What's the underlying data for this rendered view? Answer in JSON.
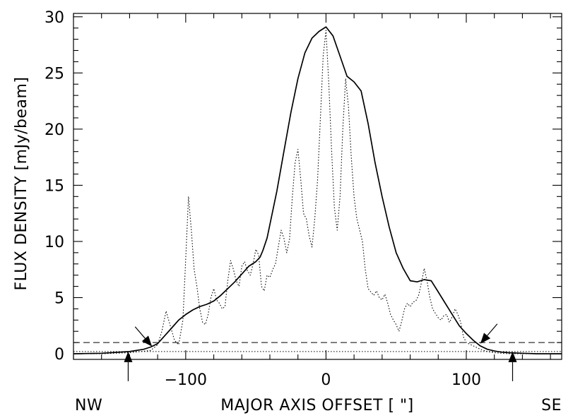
{
  "chart_data": {
    "type": "line",
    "title": "",
    "xlabel": "MAJOR AXIS OFFSET [ \"]",
    "ylabel": "FLUX DENSITY [mJy/beam]",
    "xlim": [
      -180,
      168
    ],
    "ylim": [
      -0.5,
      30.3
    ],
    "x_ticks": [
      -100,
      0,
      100
    ],
    "y_ticks": [
      0,
      5,
      10,
      15,
      20,
      25,
      30
    ],
    "x_tick_labels": [
      "−100",
      "0",
      "100"
    ],
    "y_tick_labels": [
      "0",
      "5",
      "10",
      "15",
      "20",
      "25",
      "30"
    ],
    "x_minor_step": 20,
    "y_minor_step": 1,
    "grid": false,
    "legend": "none",
    "side_labels": {
      "left": "NW",
      "right": "SE"
    },
    "hlines": [
      {
        "y": 1.0,
        "style": "dashed"
      },
      {
        "y": 0.2,
        "style": "dotted"
      }
    ],
    "series": [
      {
        "style": "solid",
        "x": [
          -180,
          -160,
          -140,
          -130,
          -125,
          -120,
          -115,
          -110,
          -105,
          -100,
          -95,
          -90,
          -85,
          -80,
          -75,
          -70,
          -65,
          -60,
          -55,
          -50,
          -47,
          -45,
          -42,
          -40,
          -35,
          -30,
          -25,
          -20,
          -15,
          -10,
          -5,
          0,
          5,
          10,
          15,
          20,
          25,
          30,
          35,
          40,
          45,
          50,
          55,
          60,
          65,
          70,
          75,
          80,
          85,
          90,
          95,
          100,
          105,
          110,
          115,
          120,
          125,
          130,
          140,
          150,
          168
        ],
        "y": [
          0.0,
          0.05,
          0.2,
          0.4,
          0.6,
          0.9,
          1.6,
          2.3,
          3.0,
          3.5,
          3.9,
          4.2,
          4.4,
          4.7,
          5.2,
          5.8,
          6.4,
          7.1,
          7.8,
          8.2,
          8.6,
          9.2,
          10.3,
          11.5,
          14.5,
          18.0,
          21.5,
          24.5,
          26.8,
          28.1,
          28.7,
          29.1,
          28.3,
          26.5,
          24.7,
          24.2,
          23.4,
          20.5,
          17.0,
          14.0,
          11.3,
          9.0,
          7.6,
          6.5,
          6.4,
          6.6,
          6.5,
          5.5,
          4.5,
          3.5,
          2.5,
          1.8,
          1.2,
          0.7,
          0.4,
          0.25,
          0.15,
          0.1,
          0.05,
          0.0,
          0.0
        ]
      },
      {
        "style": "dotted",
        "x": [
          -180,
          -160,
          -140,
          -125,
          -120,
          -117,
          -114,
          -111,
          -108,
          -105,
          -102,
          -100,
          -98,
          -96,
          -94,
          -92,
          -90,
          -88,
          -86,
          -84,
          -82,
          -80,
          -78,
          -76,
          -74,
          -72,
          -70,
          -68,
          -66,
          -64,
          -62,
          -60,
          -58,
          -56,
          -54,
          -52,
          -50,
          -48,
          -46,
          -44,
          -42,
          -40,
          -38,
          -36,
          -34,
          -32,
          -30,
          -28,
          -26,
          -24,
          -22,
          -20,
          -18,
          -16,
          -14,
          -12,
          -10,
          -8,
          -6,
          -4,
          -2,
          0,
          2,
          4,
          6,
          8,
          10,
          12,
          14,
          16,
          18,
          20,
          22,
          24,
          26,
          28,
          30,
          32,
          34,
          36,
          38,
          40,
          42,
          44,
          46,
          48,
          50,
          52,
          54,
          56,
          58,
          60,
          62,
          64,
          66,
          68,
          70,
          72,
          74,
          76,
          78,
          80,
          82,
          84,
          86,
          88,
          90,
          92,
          94,
          96,
          98,
          100,
          105,
          110,
          115,
          120,
          130,
          140,
          150,
          168
        ],
        "y": [
          0.0,
          0.0,
          0.1,
          0.3,
          0.8,
          2.0,
          3.8,
          2.5,
          1.2,
          0.8,
          3.0,
          8.5,
          14.0,
          11.0,
          7.5,
          6.0,
          4.0,
          2.8,
          2.6,
          3.5,
          5.0,
          5.8,
          4.8,
          4.5,
          4.0,
          4.2,
          6.5,
          8.3,
          7.5,
          6.5,
          6.0,
          7.8,
          8.2,
          7.4,
          7.0,
          8.0,
          9.3,
          8.8,
          6.0,
          5.6,
          7.0,
          6.8,
          7.5,
          8.0,
          9.5,
          11.0,
          10.3,
          9.0,
          10.2,
          14.0,
          17.0,
          18.2,
          15.5,
          12.5,
          12.0,
          10.5,
          9.5,
          12.0,
          15.5,
          21.0,
          26.5,
          28.8,
          24.0,
          18.0,
          13.0,
          11.0,
          14.0,
          20.0,
          24.5,
          22.0,
          17.5,
          14.0,
          12.0,
          11.0,
          10.0,
          7.5,
          5.8,
          5.5,
          5.2,
          5.6,
          5.0,
          4.8,
          5.3,
          4.5,
          3.5,
          3.0,
          2.6,
          2.0,
          2.9,
          4.0,
          4.5,
          4.2,
          4.6,
          4.7,
          5.2,
          6.3,
          7.6,
          6.5,
          5.0,
          4.0,
          3.6,
          3.2,
          3.0,
          3.4,
          3.5,
          2.8,
          3.3,
          4.0,
          3.5,
          2.8,
          1.5,
          1.0,
          0.7,
          0.4,
          0.2,
          0.1,
          0.0,
          0.0,
          0.0,
          0.0
        ]
      }
    ],
    "arrows": [
      {
        "x": -124,
        "y": 0.65,
        "from": "upper-left"
      },
      {
        "x": 110,
        "y": 0.9,
        "from": "upper-right"
      },
      {
        "x": -141,
        "y": 0.2,
        "from": "below"
      },
      {
        "x": 133,
        "y": 0.2,
        "from": "below"
      }
    ]
  }
}
